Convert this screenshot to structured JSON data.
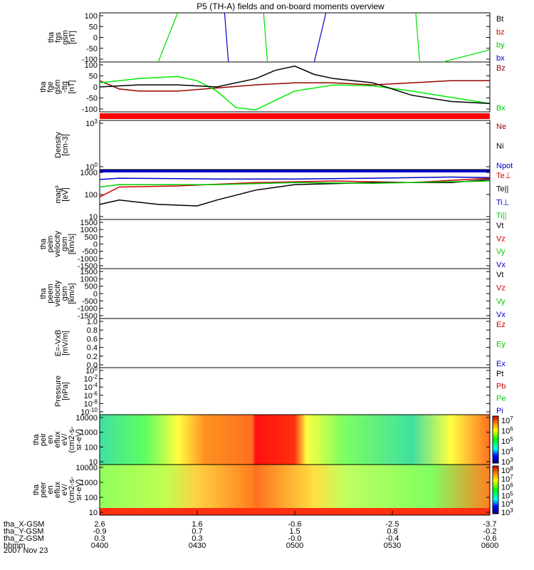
{
  "title": "P5 (TH-A) fields and on-board moments overview",
  "date_label": "2007 Nov 23",
  "colors": {
    "black": "#000000",
    "red": "#cc0000",
    "green": "#00cc00",
    "blue": "#0000cc",
    "darkred": "#990000",
    "lime": "#00ee00"
  },
  "panels": [
    {
      "id": "fgs",
      "ylabel": [
        "tha",
        "fgs",
        "gsm",
        "[nT]"
      ],
      "ticks": [
        "100",
        "50",
        "0",
        "-50",
        "-100"
      ],
      "legend": [
        {
          "text": "Bt",
          "color": "#000000"
        },
        {
          "text": "bz",
          "color": "#cc0000"
        },
        {
          "text": "by",
          "color": "#00cc00"
        },
        {
          "text": "bx",
          "color": "#0000cc"
        }
      ]
    },
    {
      "id": "fge",
      "ylabel": [
        "tha",
        "fge",
        "gsm",
        "-ttg",
        "[nT]"
      ],
      "ticks": [
        "100",
        "50",
        "0",
        "-50",
        "-100"
      ],
      "legend": [
        {
          "text": "Bz",
          "color": "#990000"
        },
        {
          "text": "Bx",
          "color": "#00cc00"
        }
      ]
    },
    {
      "id": "density",
      "ylabel": [
        "Density",
        "[cm-3]"
      ],
      "ticks": [
        "10^3",
        "10^0"
      ],
      "legend": [
        {
          "text": "Ne",
          "color": "#990000"
        },
        {
          "text": "Ni",
          "color": "#000000"
        },
        {
          "text": "Npot",
          "color": "#0000cc"
        }
      ]
    },
    {
      "id": "temp",
      "ylabel": [
        "mag³",
        "[eV]"
      ],
      "ticks": [
        "1000",
        "100",
        "10"
      ],
      "legend": [
        {
          "text": "Te⊥",
          "color": "#cc0000"
        },
        {
          "text": "Te||",
          "color": "#000000"
        },
        {
          "text": "Ti⊥",
          "color": "#0000cc"
        },
        {
          "text": "Ti||",
          "color": "#00cc00"
        }
      ]
    },
    {
      "id": "peim",
      "ylabel": [
        "tha",
        "peim",
        "velocity",
        "gsm",
        "[km/s]"
      ],
      "ticks": [
        "1500",
        "1000",
        "500",
        "0",
        "-500",
        "-1000",
        "-1500"
      ],
      "legend": [
        {
          "text": "Vt",
          "color": "#000000"
        },
        {
          "text": "Vz",
          "color": "#cc0000"
        },
        {
          "text": "Vy",
          "color": "#00cc00"
        },
        {
          "text": "Vx",
          "color": "#0000cc"
        }
      ]
    },
    {
      "id": "peem",
      "ylabel": [
        "tha",
        "peem",
        "velocity",
        "gsm",
        "[km/s]"
      ],
      "ticks": [
        "1500",
        "1000",
        "500",
        "0",
        "-500",
        "-1000",
        "-1500"
      ],
      "legend": [
        {
          "text": "Vt",
          "color": "#000000"
        },
        {
          "text": "Vz",
          "color": "#cc0000"
        },
        {
          "text": "Vy",
          "color": "#00cc00"
        },
        {
          "text": "Vx",
          "color": "#0000cc"
        }
      ]
    },
    {
      "id": "efield",
      "ylabel": [
        "E=-VxB",
        "[mV/m]"
      ],
      "ticks": [
        "1.0",
        "0.8",
        "0.6",
        "0.4",
        "0.2",
        "0.0"
      ],
      "legend": [
        {
          "text": "Ez",
          "color": "#cc0000"
        },
        {
          "text": "Ey",
          "color": "#00cc00"
        },
        {
          "text": "Ex",
          "color": "#0000cc"
        }
      ]
    },
    {
      "id": "pressure",
      "ylabel": [
        "Pressure",
        "[nPa]"
      ],
      "ticks": [
        "10^0",
        "10^-2",
        "10^-4",
        "10^-6",
        "10^-8",
        "10^-10"
      ],
      "legend": [
        {
          "text": "Pt",
          "color": "#000000"
        },
        {
          "text": "Pb",
          "color": "#cc0000"
        },
        {
          "text": "Pe",
          "color": "#00cc00"
        },
        {
          "text": "Pi",
          "color": "#0000cc"
        }
      ]
    },
    {
      "id": "peir",
      "ylabel": [
        "tha",
        "peir",
        "en",
        "eflux",
        "eV/",
        "(cm2-s-",
        "sr-eV)"
      ],
      "ticks": [
        "10000",
        "1000",
        "100",
        "10"
      ],
      "cbar": [
        "10^7",
        "10^6",
        "10^5",
        "10^4",
        "10^3"
      ]
    },
    {
      "id": "peer",
      "ylabel": [
        "tha",
        "peer",
        "en",
        "eflux",
        "eV/",
        "(cm2-s-",
        "sr-eV)"
      ],
      "ticks": [
        "10000",
        "1000",
        "100",
        "10"
      ],
      "cbar": [
        "10^8",
        "10^7",
        "10^6",
        "10^5",
        "10^4",
        "10^3"
      ]
    }
  ],
  "xaxis": {
    "rows": [
      {
        "label": "tha_X-GSM",
        "values": [
          "2.6",
          "1.6",
          "-0.6",
          "-2.5",
          "-3.7"
        ]
      },
      {
        "label": "tha_Y-GSM",
        "values": [
          "-0.9",
          "0.7",
          "1.5",
          "0.8",
          "-0.2"
        ]
      },
      {
        "label": "tha_Z-GSM",
        "values": [
          "0.3",
          "0.3",
          "-0.0",
          "-0.4",
          "-0.6"
        ]
      },
      {
        "label": "hhmm",
        "values": [
          "0400",
          "0430",
          "0500",
          "0530",
          "0600"
        ]
      }
    ]
  },
  "chart_data": [
    {
      "type": "line",
      "panel": "fgs",
      "ylim": [
        -100,
        100
      ],
      "x_range": [
        "0400",
        "0600"
      ],
      "series": [
        {
          "name": "by",
          "segments": [
            [
              [
                0.15,
                -100
              ],
              [
                0.2,
                100
              ]
            ],
            [
              [
                0.42,
                100
              ],
              [
                0.43,
                -100
              ]
            ],
            [
              [
                0.81,
                100
              ],
              [
                0.82,
                -100
              ]
            ],
            [
              [
                0.88,
                -100
              ],
              [
                1.0,
                -50
              ]
            ]
          ]
        },
        {
          "name": "bx",
          "segments": [
            [
              [
                0.32,
                100
              ],
              [
                0.33,
                -100
              ]
            ],
            [
              [
                0.55,
                -100
              ],
              [
                0.58,
                100
              ]
            ]
          ]
        }
      ]
    },
    {
      "type": "line",
      "panel": "fge",
      "ylim": [
        -120,
        120
      ],
      "series": [
        {
          "name": "Bz",
          "x": [
            0.0,
            0.05,
            0.1,
            0.2,
            0.3,
            0.4,
            0.5,
            0.6,
            0.7,
            0.8,
            0.9,
            1.0
          ],
          "y": [
            30,
            -10,
            -20,
            -20,
            -5,
            10,
            20,
            20,
            10,
            20,
            30,
            30
          ]
        },
        {
          "name": "Bx",
          "x": [
            0.0,
            0.05,
            0.1,
            0.2,
            0.25,
            0.3,
            0.35,
            0.4,
            0.5,
            0.6,
            0.7,
            0.8,
            0.9,
            1.0
          ],
          "y": [
            20,
            30,
            40,
            50,
            30,
            -20,
            -100,
            -110,
            -20,
            10,
            5,
            -20,
            -50,
            -80
          ]
        },
        {
          "name": "Bt",
          "x": [
            0.0,
            0.1,
            0.2,
            0.3,
            0.4,
            0.45,
            0.5,
            0.55,
            0.6,
            0.7,
            0.8,
            0.9,
            1.0
          ],
          "y": [
            0,
            10,
            10,
            0,
            40,
            80,
            100,
            60,
            40,
            20,
            -40,
            -70,
            -80
          ]
        }
      ]
    },
    {
      "type": "line",
      "panel": "temp",
      "ylog": true,
      "ylim": [
        10,
        1000
      ],
      "series": [
        {
          "name": "Ti⊥",
          "x": [
            0,
            0.05,
            0.3,
            0.5,
            0.7,
            0.9,
            1.0
          ],
          "y": [
            400,
            450,
            420,
            420,
            450,
            500,
            480
          ]
        },
        {
          "name": "Te⊥",
          "x": [
            0,
            0.05,
            0.2,
            0.4,
            0.6,
            0.8,
            1.0
          ],
          "y": [
            80,
            200,
            220,
            300,
            350,
            300,
            450
          ]
        },
        {
          "name": "Te||",
          "x": [
            0,
            0.05,
            0.15,
            0.25,
            0.3,
            0.4,
            0.5,
            0.7,
            0.9,
            1.0
          ],
          "y": [
            40,
            60,
            40,
            35,
            60,
            150,
            250,
            300,
            300,
            400
          ]
        },
        {
          "name": "Ti||",
          "x": [
            0,
            0.05,
            0.3,
            0.5,
            0.7,
            1.0
          ],
          "y": [
            200,
            250,
            250,
            300,
            280,
            350
          ]
        }
      ]
    },
    {
      "type": "heatmap",
      "panel": "peir",
      "ylog": true,
      "ylim": [
        10,
        10000
      ],
      "zlim": [
        1000.0,
        10000000.0
      ]
    },
    {
      "type": "heatmap",
      "panel": "peer",
      "ylog": true,
      "ylim": [
        10,
        10000
      ],
      "zlim": [
        1000.0,
        100000000.0
      ]
    }
  ]
}
